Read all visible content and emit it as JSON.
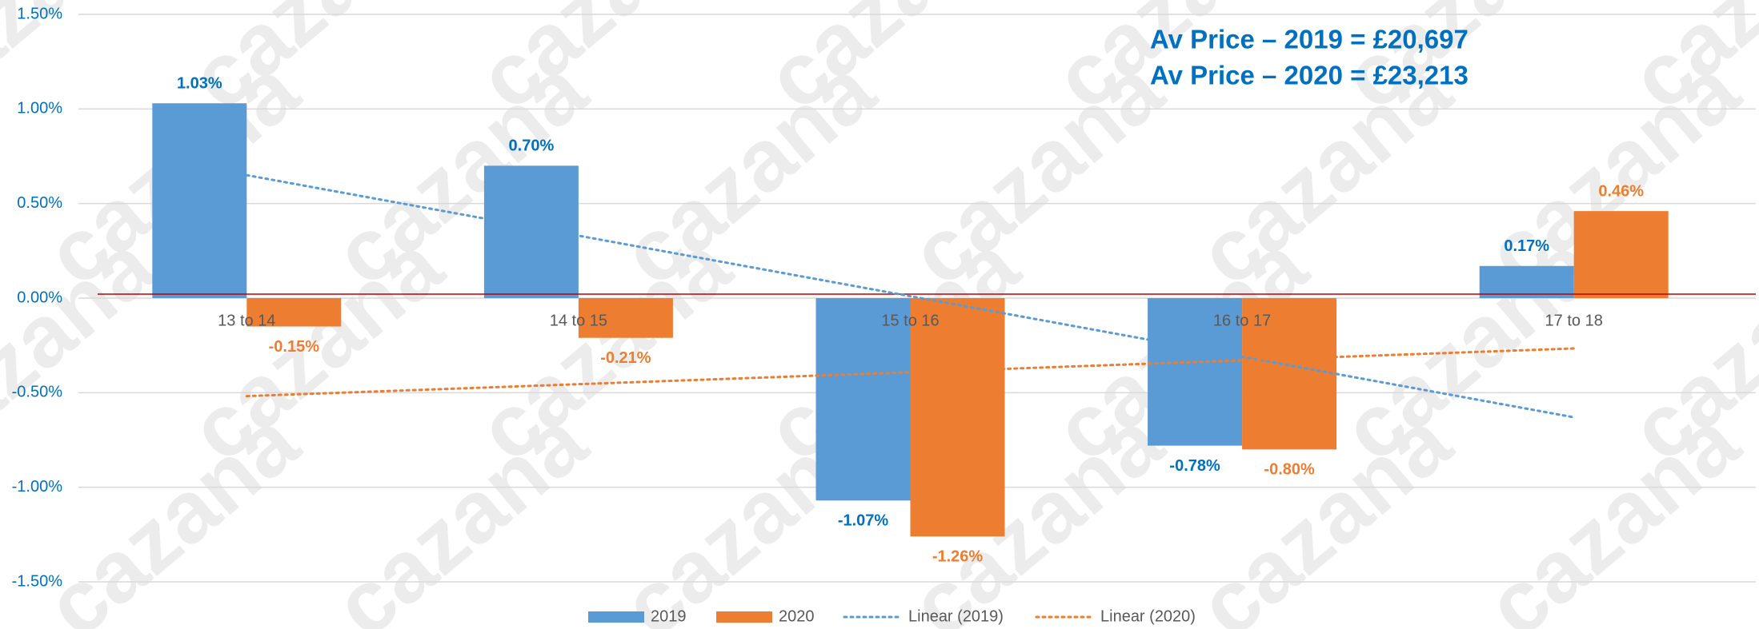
{
  "chart_data": {
    "type": "bar",
    "categories": [
      "13 to 14",
      "14 to 15",
      "15 to 16",
      "16 to 17",
      "17 to 18"
    ],
    "series": [
      {
        "name": "2019",
        "color": "#5b9bd5",
        "label_color": "#0070c0",
        "values": [
          1.03,
          0.7,
          -1.07,
          -0.78,
          0.17
        ],
        "value_labels": [
          "1.03%",
          "0.70%",
          "-1.07%",
          "-0.78%",
          "0.17%"
        ]
      },
      {
        "name": "2020",
        "color": "#ed7d31",
        "label_color": "#ed7d31",
        "values": [
          -0.15,
          -0.21,
          -1.26,
          -0.8,
          0.46
        ],
        "value_labels": [
          "-0.15%",
          "-0.21%",
          "-1.26%",
          "-0.80%",
          "0.46%"
        ]
      }
    ],
    "trendlines": [
      {
        "name": "Linear (2019)",
        "of": "2019",
        "color": "#5b9bd5"
      },
      {
        "name": "Linear (2020)",
        "of": "2020",
        "color": "#ed7d31"
      }
    ],
    "annotations": [
      "Av Price – 2019 = £20,697",
      "Av Price – 2020 = £23,213"
    ],
    "watermark": "cazana",
    "ylim": [
      -1.5,
      1.5
    ],
    "yticks": [
      {
        "value": -1.5,
        "label": "-1.50%"
      },
      {
        "value": -1.0,
        "label": "-1.00%"
      },
      {
        "value": -0.5,
        "label": "-0.50%"
      },
      {
        "value": 0,
        "label": "0.00%"
      },
      {
        "value": 0.5,
        "label": "0.50%"
      },
      {
        "value": 1.0,
        "label": "1.00%"
      },
      {
        "value": 1.5,
        "label": "1.50%"
      }
    ],
    "grid": true,
    "baseline_color": "#c00000",
    "legend": "bottom"
  }
}
